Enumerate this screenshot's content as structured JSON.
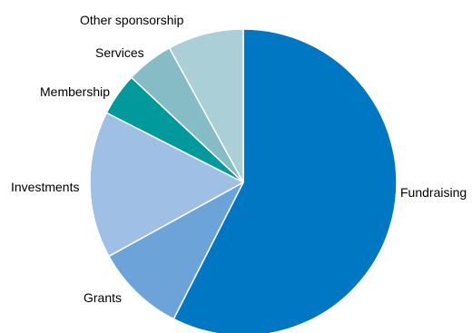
{
  "chart_data": {
    "type": "pie",
    "title": "",
    "start_angle_deg": 0,
    "direction": "clockwise",
    "legend": "none",
    "slices": [
      {
        "label": "Fundraising",
        "value": 57.5,
        "color": "#0077C2"
      },
      {
        "label": "Grants",
        "value": 9.5,
        "color": "#6CA3D9"
      },
      {
        "label": "Investments",
        "value": 15.5,
        "color": "#9FBFE5"
      },
      {
        "label": "Membership",
        "value": 4.5,
        "color": "#00999C"
      },
      {
        "label": "Services",
        "value": 5.0,
        "color": "#86BCC6"
      },
      {
        "label": "Other sponsorship",
        "value": 8.0,
        "color": "#AACFD6"
      }
    ]
  }
}
